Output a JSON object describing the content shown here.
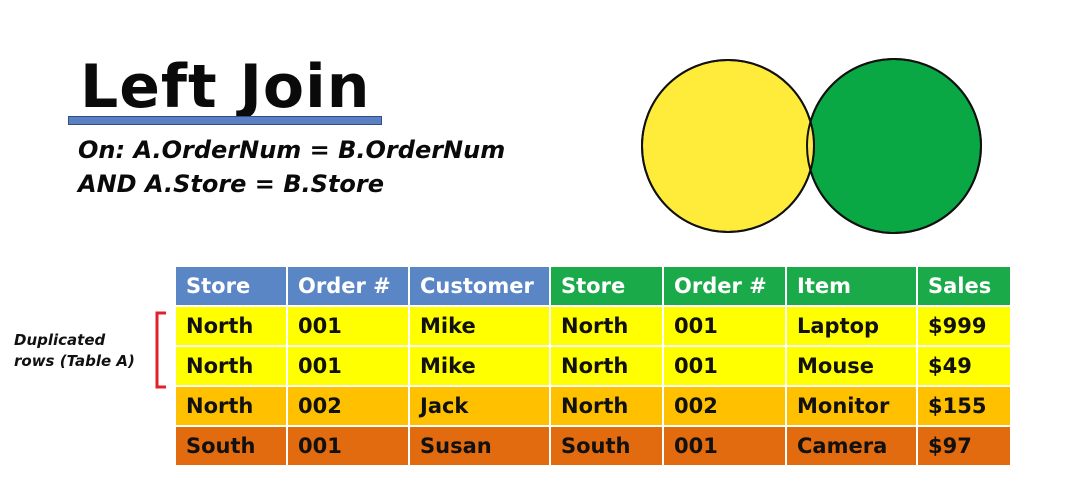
{
  "title": "Left Join",
  "condition": {
    "line1": "On: A.OrderNum = B.OrderNum",
    "line2": "AND A.Store = B.Store"
  },
  "side_note": {
    "line1": "Duplicated",
    "line2": "rows (Table A)"
  },
  "colors": {
    "circle_a": "#ffec3a",
    "circle_b": "#0aa845",
    "overlap": "#fce84a",
    "header_a": "#5b86c5",
    "header_b": "#1aaa4a",
    "row_yellow": "#ffff00",
    "row_orange": "#ffc000",
    "row_dark": "#e26b10",
    "bracket": "#e0202a"
  },
  "table": {
    "headers_a": [
      "Store",
      "Order #",
      "Customer"
    ],
    "headers_b": [
      "Store",
      "Order #",
      "Item",
      "Sales"
    ],
    "rows": [
      [
        "North",
        "001",
        "Mike",
        "North",
        "001",
        "Laptop",
        "$999"
      ],
      [
        "North",
        "001",
        "Mike",
        "North",
        "001",
        "Mouse",
        "$49"
      ],
      [
        "North",
        "002",
        "Jack",
        "North",
        "002",
        "Monitor",
        "$155"
      ],
      [
        "South",
        "001",
        "Susan",
        "South",
        "001",
        "Camera",
        "$97"
      ]
    ]
  }
}
